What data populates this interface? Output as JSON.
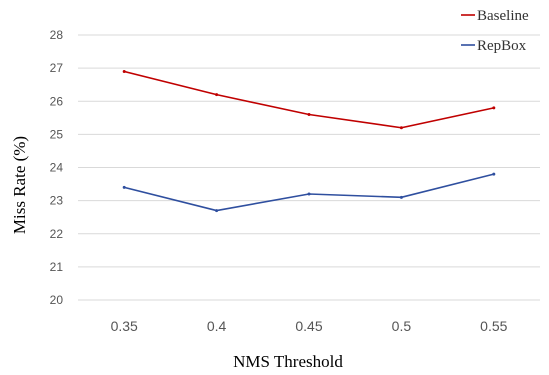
{
  "chart_data": {
    "type": "line",
    "title": "",
    "xlabel": "NMS Threshold",
    "ylabel": "Miss Rate (%)",
    "categories": [
      "0.35",
      "0.4",
      "0.45",
      "0.5",
      "0.55"
    ],
    "ylim": [
      20,
      28
    ],
    "yticks": [
      "20",
      "21",
      "22",
      "23",
      "24",
      "25",
      "26",
      "27",
      "28"
    ],
    "grid": true,
    "legend_position": "top-right",
    "series": [
      {
        "name": "Baseline",
        "color": "#c00000",
        "values": [
          26.9,
          26.2,
          25.6,
          25.2,
          25.8
        ]
      },
      {
        "name": "RepBox",
        "color": "#2f4f9f",
        "values": [
          23.4,
          22.7,
          23.2,
          23.1,
          23.8
        ]
      }
    ]
  }
}
